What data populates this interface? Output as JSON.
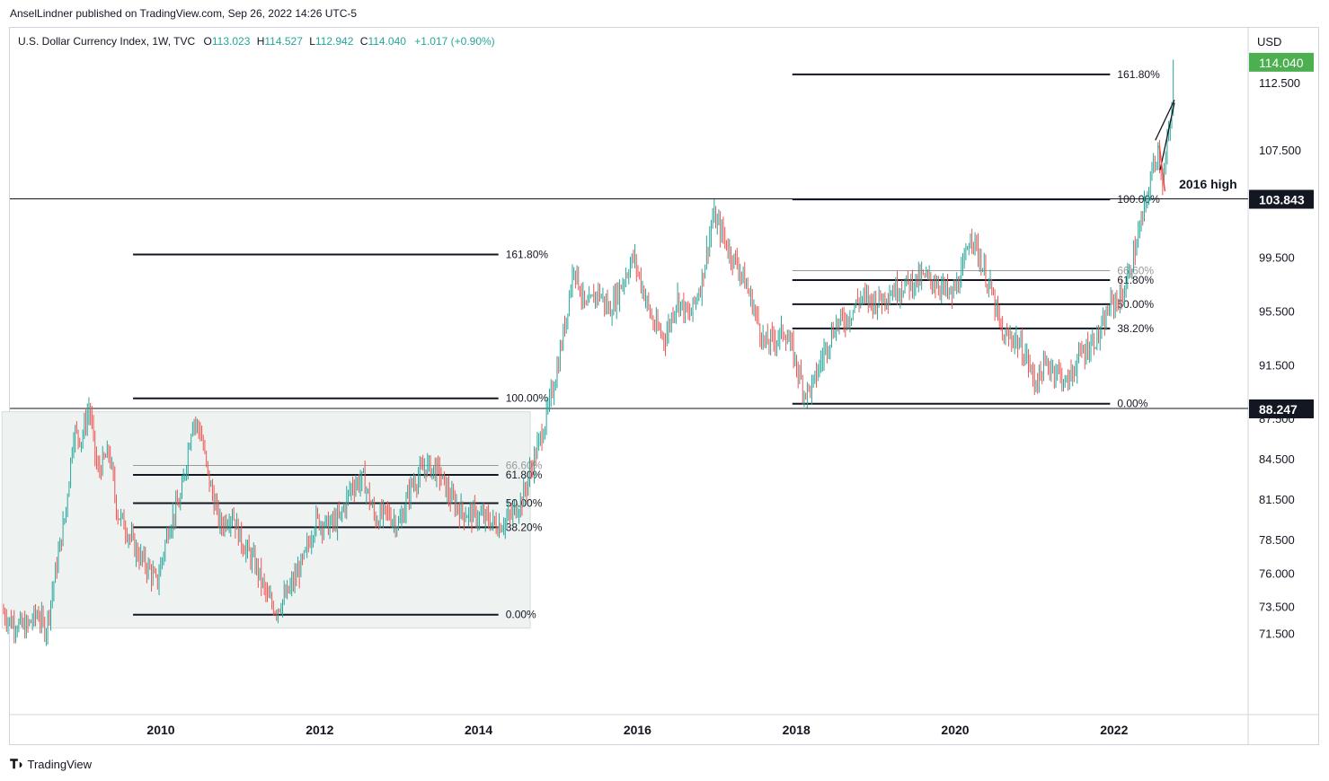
{
  "header": {
    "publisher": "AnselLindner published on TradingView.com, Sep 26, 2022 14:26 UTC-5"
  },
  "legend": {
    "instrument": "U.S. Dollar Currency Index, 1W, TVC",
    "open_label": "O",
    "open": "113.023",
    "high_label": "H",
    "high": "114.527",
    "low_label": "L",
    "low": "112.942",
    "close_label": "C",
    "close": "114.040",
    "change": "+1.017 (+0.90%)"
  },
  "footer": {
    "brand": "TradingView",
    "logo": "tradingview-logo"
  },
  "colors": {
    "up": "#26a69a",
    "down": "#ef5350",
    "price_label_green": "#4caf50",
    "dark_label": "#131722",
    "box_fill": "#eef3f2"
  },
  "chart_data": {
    "type": "candlestick",
    "currency": "USD",
    "yaxis_ticks": [
      "112.500",
      "107.500",
      "99.500",
      "95.500",
      "91.500",
      "87.500",
      "84.500",
      "81.500",
      "78.500",
      "76.000",
      "73.500",
      "71.500"
    ],
    "yaxis_tick_values": [
      112.5,
      107.5,
      99.5,
      95.5,
      91.5,
      87.5,
      84.5,
      81.5,
      78.5,
      76.0,
      73.5,
      71.5
    ],
    "xaxis_ticks": [
      "2010",
      "2012",
      "2014",
      "2016",
      "2018",
      "2020",
      "2022"
    ],
    "xaxis_tick_values": [
      2010,
      2012,
      2014,
      2016,
      2018,
      2020,
      2022
    ],
    "price_labels": [
      {
        "value": 114.04,
        "text": "114.040",
        "style": "green"
      },
      {
        "value": 103.843,
        "text": "103.843",
        "style": "dark"
      },
      {
        "value": 88.247,
        "text": "88.247",
        "style": "dark"
      }
    ],
    "horizontal_lines": [
      103.843,
      88.247
    ],
    "annotation": {
      "text": "2016 high",
      "value": 104.0,
      "x": 2022.75
    },
    "fib_2009": {
      "x_start": 2009.65,
      "x_end": 2014.25,
      "levels": [
        {
          "value": 99.7,
          "label": "161.80%"
        },
        {
          "value": 89.0,
          "label": "100.00%"
        },
        {
          "value": 84.0,
          "label": "66.60%",
          "faded": true
        },
        {
          "value": 83.3,
          "label": "61.80%"
        },
        {
          "value": 81.2,
          "label": "50.00%"
        },
        {
          "value": 79.4,
          "label": "38.20%"
        },
        {
          "value": 72.9,
          "label": "0.00%"
        }
      ]
    },
    "fib_2018": {
      "x_start": 2017.95,
      "x_end": 2021.95,
      "levels": [
        {
          "value": 113.1,
          "label": "161.80%"
        },
        {
          "value": 103.8,
          "label": "100.00%"
        },
        {
          "value": 98.5,
          "label": "66.60%",
          "faded": true
        },
        {
          "value": 97.8,
          "label": "61.80%"
        },
        {
          "value": 96.0,
          "label": "50.00%"
        },
        {
          "value": 94.2,
          "label": "38.20%"
        },
        {
          "value": 88.6,
          "label": "0.00%"
        }
      ]
    },
    "range_box": {
      "x_start": 2008.0,
      "x_end": 2014.65,
      "y_low": 71.9,
      "y_high": 88.0
    },
    "price_path": [
      [
        2008.0,
        73.2
      ],
      [
        2008.1,
        72.4
      ],
      [
        2008.3,
        71.9
      ],
      [
        2008.45,
        73.0
      ],
      [
        2008.55,
        71.7
      ],
      [
        2008.7,
        77.0
      ],
      [
        2008.8,
        80.5
      ],
      [
        2008.9,
        86.5
      ],
      [
        2009.0,
        86.0
      ],
      [
        2009.1,
        88.4
      ],
      [
        2009.2,
        83.5
      ],
      [
        2009.35,
        85.0
      ],
      [
        2009.45,
        80.5
      ],
      [
        2009.55,
        79.5
      ],
      [
        2009.7,
        77.5
      ],
      [
        2009.85,
        76.3
      ],
      [
        2009.95,
        75.2
      ],
      [
        2010.1,
        79.5
      ],
      [
        2010.25,
        81.5
      ],
      [
        2010.4,
        87.5
      ],
      [
        2010.5,
        86.5
      ],
      [
        2010.6,
        83.0
      ],
      [
        2010.75,
        79.5
      ],
      [
        2010.9,
        80.5
      ],
      [
        2011.0,
        78.5
      ],
      [
        2011.2,
        76.5
      ],
      [
        2011.35,
        74.0
      ],
      [
        2011.45,
        73.3
      ],
      [
        2011.6,
        74.5
      ],
      [
        2011.8,
        77.0
      ],
      [
        2011.95,
        80.0
      ],
      [
        2012.1,
        79.5
      ],
      [
        2012.25,
        80.0
      ],
      [
        2012.4,
        82.5
      ],
      [
        2012.55,
        83.0
      ],
      [
        2012.7,
        80.0
      ],
      [
        2012.85,
        80.5
      ],
      [
        2013.0,
        79.5
      ],
      [
        2013.15,
        82.5
      ],
      [
        2013.35,
        84.0
      ],
      [
        2013.5,
        83.5
      ],
      [
        2013.65,
        81.5
      ],
      [
        2013.8,
        80.5
      ],
      [
        2013.95,
        80.3
      ],
      [
        2014.1,
        80.0
      ],
      [
        2014.25,
        79.5
      ],
      [
        2014.4,
        80.2
      ],
      [
        2014.55,
        81.5
      ],
      [
        2014.7,
        84.5
      ],
      [
        2014.85,
        87.5
      ],
      [
        2015.0,
        91.5
      ],
      [
        2015.1,
        95.0
      ],
      [
        2015.2,
        99.0
      ],
      [
        2015.35,
        95.5
      ],
      [
        2015.5,
        97.0
      ],
      [
        2015.65,
        95.5
      ],
      [
        2015.8,
        97.5
      ],
      [
        2015.95,
        99.5
      ],
      [
        2016.05,
        97.5
      ],
      [
        2016.2,
        94.5
      ],
      [
        2016.35,
        93.5
      ],
      [
        2016.5,
        96.5
      ],
      [
        2016.65,
        95.0
      ],
      [
        2016.8,
        97.5
      ],
      [
        2016.95,
        102.5
      ],
      [
        2017.05,
        101.5
      ],
      [
        2017.15,
        100.0
      ],
      [
        2017.3,
        98.5
      ],
      [
        2017.45,
        96.0
      ],
      [
        2017.6,
        93.0
      ],
      [
        2017.75,
        93.5
      ],
      [
        2017.85,
        94.0
      ],
      [
        2017.95,
        92.5
      ],
      [
        2018.1,
        89.5
      ],
      [
        2018.2,
        89.8
      ],
      [
        2018.35,
        92.5
      ],
      [
        2018.5,
        94.5
      ],
      [
        2018.65,
        95.0
      ],
      [
        2018.8,
        96.5
      ],
      [
        2019.0,
        96.2
      ],
      [
        2019.2,
        97.0
      ],
      [
        2019.4,
        97.5
      ],
      [
        2019.6,
        98.0
      ],
      [
        2019.8,
        97.5
      ],
      [
        2019.95,
        96.5
      ],
      [
        2020.1,
        98.5
      ],
      [
        2020.2,
        101.5
      ],
      [
        2020.3,
        99.5
      ],
      [
        2020.45,
        97.0
      ],
      [
        2020.6,
        93.5
      ],
      [
        2020.75,
        93.5
      ],
      [
        2020.9,
        92.0
      ],
      [
        2021.0,
        90.2
      ],
      [
        2021.15,
        91.5
      ],
      [
        2021.3,
        91.0
      ],
      [
        2021.4,
        90.0
      ],
      [
        2021.55,
        92.0
      ],
      [
        2021.7,
        93.0
      ],
      [
        2021.85,
        94.0
      ],
      [
        2021.95,
        96.0
      ],
      [
        2022.1,
        96.5
      ],
      [
        2022.2,
        98.5
      ],
      [
        2022.3,
        101.0
      ],
      [
        2022.4,
        103.5
      ],
      [
        2022.5,
        106.5
      ],
      [
        2022.55,
        107.5
      ],
      [
        2022.62,
        105.0
      ],
      [
        2022.67,
        108.0
      ],
      [
        2022.72,
        109.5
      ],
      [
        2022.75,
        114.04
      ]
    ],
    "wedge": {
      "top": [
        [
          2022.52,
          108.2
        ],
        [
          2022.76,
          111.2
        ]
      ],
      "bottom": [
        [
          2022.58,
          106.0
        ],
        [
          2022.76,
          111.0
        ]
      ]
    },
    "red_drop": [
      [
        2022.57,
        107.8
      ],
      [
        2022.64,
        104.4
      ]
    ]
  }
}
